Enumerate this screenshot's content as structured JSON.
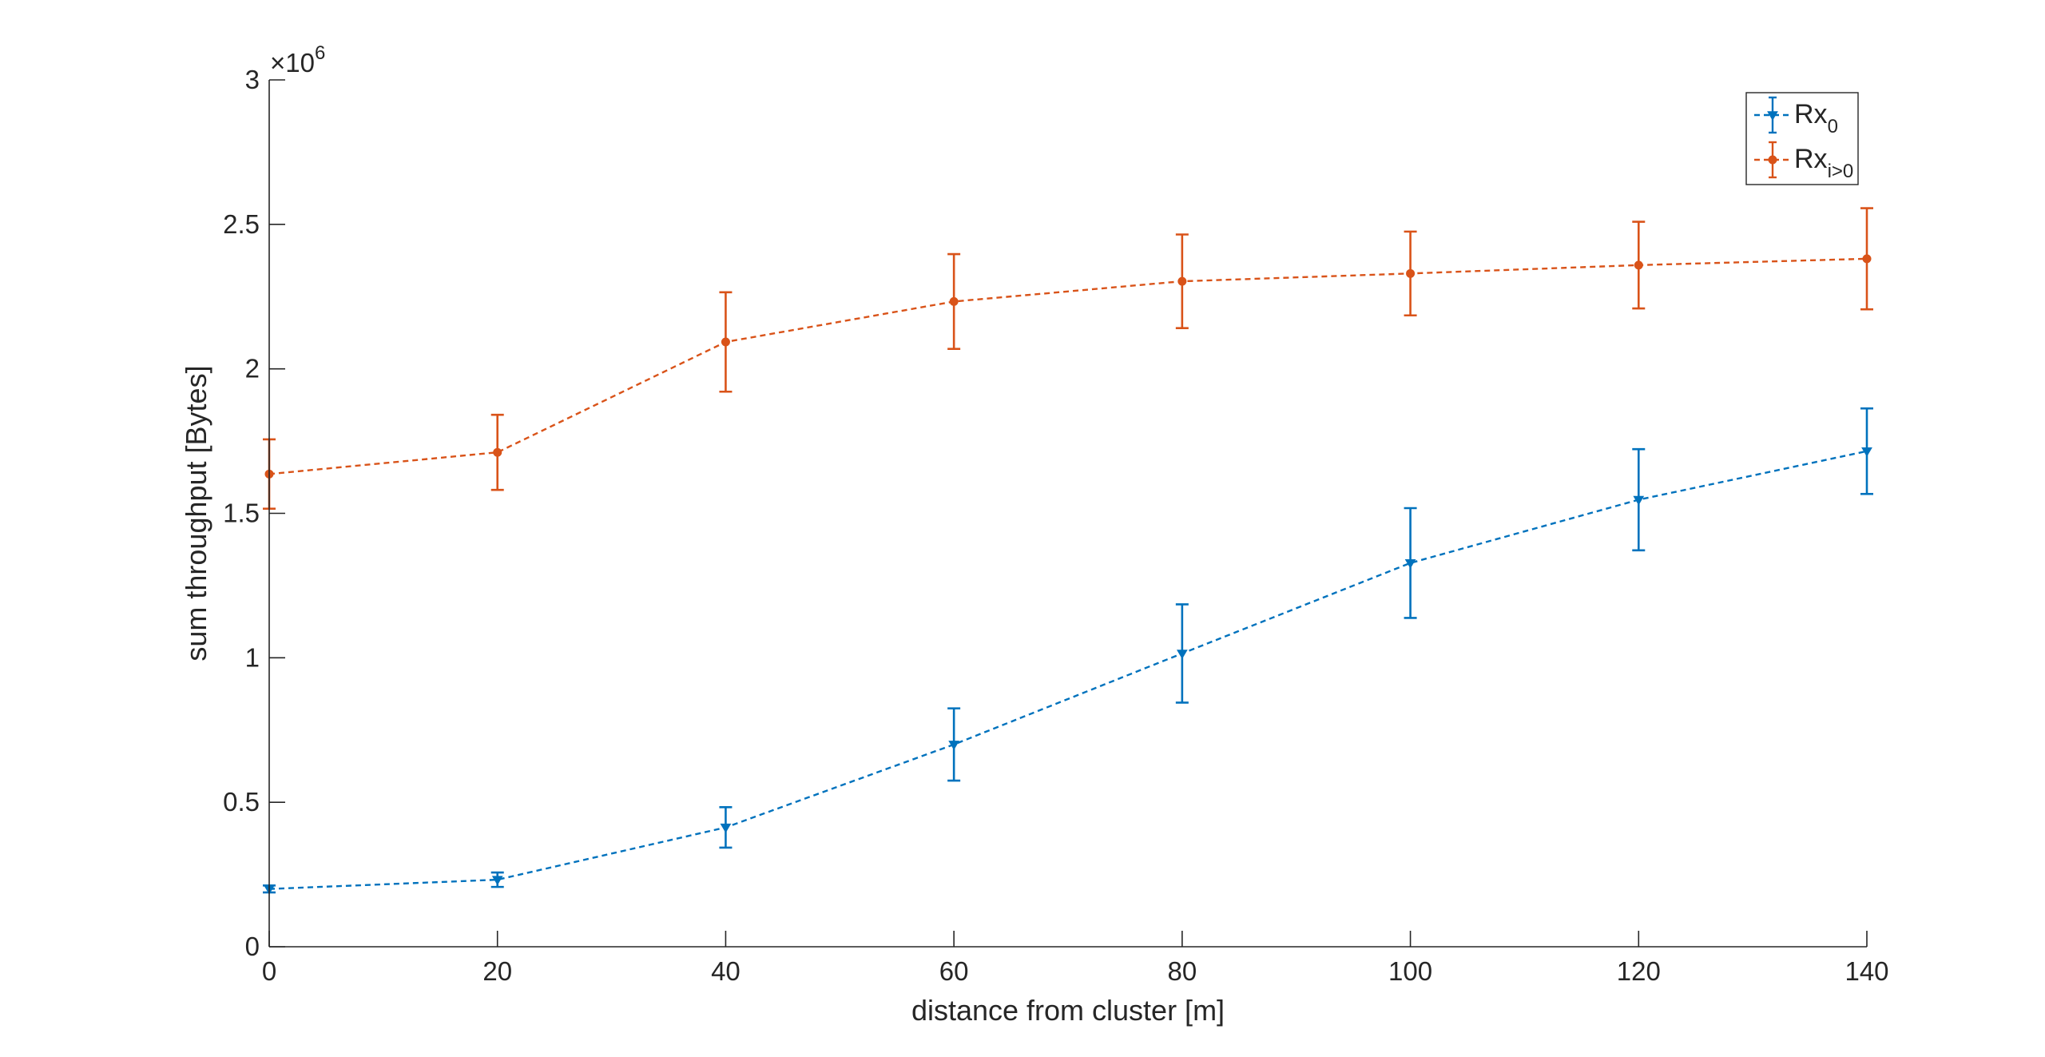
{
  "chart_data": {
    "type": "line",
    "title": "",
    "xlabel": "distance from cluster [m]",
    "ylabel": "sum throughput [Bytes]",
    "y_exponent_label": "×10",
    "y_exponent": "6",
    "xlim": [
      0,
      140
    ],
    "ylim": [
      0,
      3000000
    ],
    "x_ticks": [
      "0",
      "20",
      "40",
      "60",
      "80",
      "100",
      "120",
      "140"
    ],
    "y_ticks": [
      "0",
      "0.5",
      "1",
      "1.5",
      "2",
      "2.5",
      "3"
    ],
    "grid": false,
    "legend_position": "top-right",
    "x": [
      0,
      20,
      40,
      60,
      80,
      100,
      120,
      140
    ],
    "series": [
      {
        "name": "Rx",
        "name_sub": "0",
        "color": "#0072BD",
        "line_style": "dashed",
        "marker": "triangle-down",
        "values": [
          200000,
          232000,
          413000,
          700000,
          1015000,
          1328000,
          1547000,
          1715000
        ],
        "errors": [
          12000,
          25000,
          70000,
          125000,
          170000,
          190000,
          175000,
          148000
        ]
      },
      {
        "name": "Rx",
        "name_sub": "i>0",
        "color": "#D95319",
        "line_style": "dashed",
        "marker": "circle",
        "values": [
          1636000,
          1711000,
          2093000,
          2233000,
          2303000,
          2330000,
          2359000,
          2381000
        ],
        "errors": [
          120000,
          130000,
          172000,
          164000,
          162000,
          145000,
          150000,
          175000
        ]
      }
    ]
  }
}
